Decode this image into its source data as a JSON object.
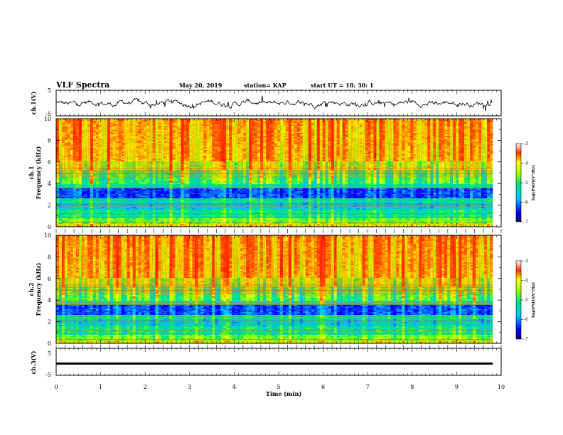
{
  "header": {
    "title": "VLF Spectra",
    "date": "May 20, 2019",
    "station": "station= KAP",
    "start": "start  UT =   18: 30: 1"
  },
  "chart_data": [
    {
      "type": "line",
      "panel": "ch1-waveform",
      "ylabel": "ch.1(V)",
      "ylim": [
        -5,
        5
      ],
      "yticks": [
        "5",
        "-5"
      ],
      "xlim": [
        0,
        10
      ],
      "trace": "noisy waveform, values roughly between -1.5 and 1.5 V"
    },
    {
      "type": "heatmap",
      "panel": "ch1-spectrogram",
      "ylabel_top": "ch.1",
      "ylabel": "Frequency (kHz)",
      "ylim": [
        0,
        10
      ],
      "yticks": [
        "0",
        "2",
        "4",
        "6",
        "8",
        "10"
      ],
      "xlim": [
        0,
        10
      ],
      "colorbar": {
        "label": "log(PSD)(V²/Hz)",
        "range": [
          -7,
          -3
        ],
        "ticks": [
          "-3",
          "-4",
          "-5",
          "-6",
          "-7"
        ]
      }
    },
    {
      "type": "heatmap",
      "panel": "ch2-spectrogram",
      "ylabel_top": "ch.2",
      "ylabel": "Frequency (kHz)",
      "ylim": [
        0,
        10
      ],
      "yticks": [
        "0",
        "2",
        "4",
        "6",
        "8",
        "10"
      ],
      "xlim": [
        0,
        10
      ],
      "colorbar": {
        "label": "log(PSD)(V²/Hz)",
        "range": [
          -7,
          -3
        ],
        "ticks": [
          "-3",
          "-4",
          "-5",
          "-6",
          "-7"
        ]
      }
    },
    {
      "type": "line",
      "panel": "ch3-waveform",
      "ylabel": "ch.3(V)",
      "ylim": [
        -5,
        5
      ],
      "yticks": [
        "5",
        "-5"
      ],
      "xlim": [
        0,
        10
      ],
      "trace": "nearly constant line at about 0 V"
    }
  ],
  "xaxis": {
    "label": "Time (min)",
    "ticks": [
      "0",
      "1",
      "2",
      "3",
      "4",
      "5",
      "6",
      "7",
      "8",
      "9",
      "10"
    ]
  }
}
